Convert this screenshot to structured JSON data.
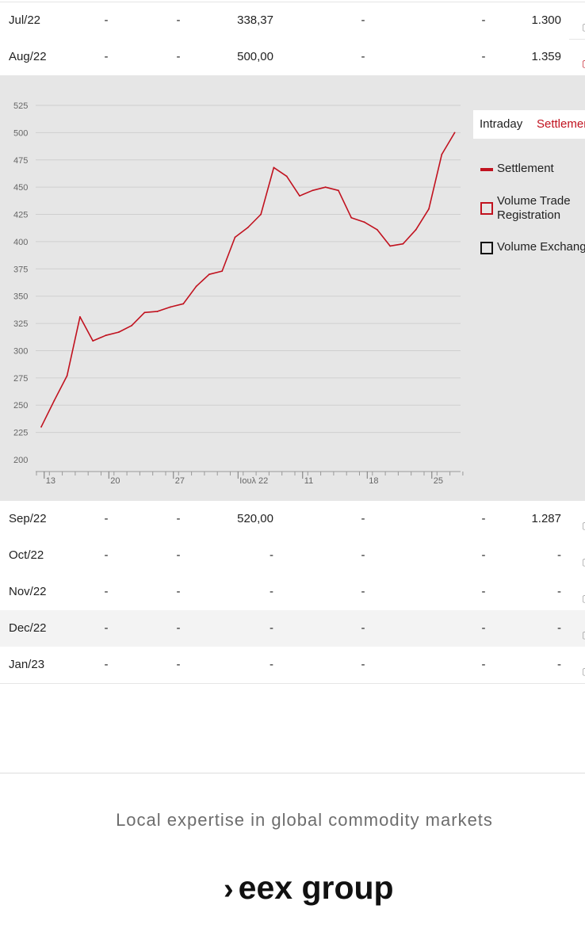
{
  "table": {
    "rows_top": [
      {
        "month": "Jul/22",
        "d1": "-",
        "d2": "-",
        "settlement": "338,37",
        "d3": "-",
        "d4": "-",
        "volume": "1.300"
      },
      {
        "month": "Aug/22",
        "d1": "-",
        "d2": "-",
        "settlement": "500,00",
        "d3": "-",
        "d4": "-",
        "volume": "1.359"
      }
    ],
    "rows_bottom": [
      {
        "month": "Sep/22",
        "d1": "-",
        "d2": "-",
        "settlement": "520,00",
        "d3": "-",
        "d4": "-",
        "volume": "1.287"
      },
      {
        "month": "Oct/22",
        "d1": "-",
        "d2": "-",
        "settlement": "-",
        "d3": "-",
        "d4": "-",
        "volume": "-"
      },
      {
        "month": "Nov/22",
        "d1": "-",
        "d2": "-",
        "settlement": "-",
        "d3": "-",
        "d4": "-",
        "volume": "-"
      },
      {
        "month": "Dec/22",
        "d1": "-",
        "d2": "-",
        "settlement": "-",
        "d3": "-",
        "d4": "-",
        "volume": "-"
      },
      {
        "month": "Jan/23",
        "d1": "-",
        "d2": "-",
        "settlement": "-",
        "d3": "-",
        "d4": "-",
        "volume": "-"
      }
    ],
    "highlighted_row": "Dec/22"
  },
  "chart_tabs": {
    "intraday": "Intraday",
    "settlement": "Settlement",
    "active": "Settlement"
  },
  "legend": {
    "settlement": "Settlement",
    "volume_trade_line1": "Volume Trade",
    "volume_trade_line2": "Registration",
    "volume_exchange": "Volume Exchange"
  },
  "colors": {
    "accent": "#c1121f",
    "panel": "#e6e6e6",
    "grid": "#cfcfcf"
  },
  "chart_data": {
    "type": "line",
    "title": "",
    "xlabel": "",
    "ylabel": "",
    "ylim": [
      200,
      525
    ],
    "yticks": [
      200,
      225,
      250,
      275,
      300,
      325,
      350,
      375,
      400,
      425,
      450,
      475,
      500,
      525
    ],
    "xtick_labels": [
      {
        "label": "13",
        "index": 0.6
      },
      {
        "label": "20",
        "index": 5.6
      },
      {
        "label": "27",
        "index": 10.6
      },
      {
        "label": "Ιουλ 22",
        "index": 15.6
      },
      {
        "label": "11",
        "index": 20.6
      },
      {
        "label": "18",
        "index": 25.6
      },
      {
        "label": "25",
        "index": 30.6
      }
    ],
    "series": [
      {
        "name": "Settlement",
        "color": "#c1121f",
        "values": [
          230,
          254,
          277,
          331,
          309,
          314,
          317,
          323,
          335,
          336,
          340,
          343,
          359,
          370,
          373,
          404,
          413,
          425,
          468,
          460,
          442,
          447,
          450,
          447,
          422,
          418,
          411,
          396,
          398,
          411,
          430,
          480,
          500
        ]
      }
    ],
    "grid": true,
    "legend_position": "right"
  },
  "footer": {
    "tagline": "Local expertise in global commodity markets",
    "logo_text": "eex group",
    "logo_chevron": "›"
  }
}
